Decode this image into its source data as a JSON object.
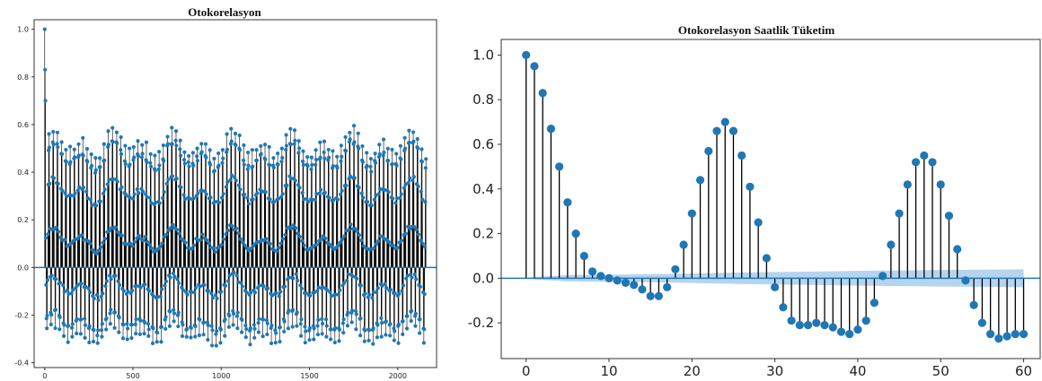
{
  "chart_data": [
    {
      "type": "stem",
      "title": "Otokorelasyon",
      "xlabel": "",
      "ylabel": "",
      "xlim": [
        -60,
        2220
      ],
      "ylim": [
        -0.42,
        1.04
      ],
      "xticks": [
        "0",
        "500",
        "1000",
        "1500",
        "2000"
      ],
      "yticks": [
        "-0.4",
        "-0.2",
        "0.0",
        "0.2",
        "0.4",
        "0.6",
        "0.8",
        "1.0"
      ],
      "xtick_values": [
        0,
        500,
        1000,
        1500,
        2000
      ],
      "ytick_values": [
        -0.4,
        -0.2,
        0.0,
        0.2,
        0.4,
        0.6,
        0.8,
        1.0
      ],
      "max_lag": 2160,
      "period_lags": 24,
      "initial_values": [
        1.0,
        0.95,
        0.83,
        0.68,
        0.7,
        0.62
      ],
      "upper_envelope_base": 0.5,
      "lower_envelope_base": -0.27,
      "marker_color": "#1f77b4",
      "stem_color": "#000000",
      "baseline_color": "#1f77b4",
      "grid": false,
      "legend": "none"
    },
    {
      "type": "stem",
      "title": "Otokorelasyon Saatlik Tüketim",
      "xlabel": "",
      "ylabel": "",
      "xlim": [
        -3,
        62
      ],
      "ylim": [
        -0.36,
        1.07
      ],
      "xticks": [
        "0",
        "10",
        "20",
        "30",
        "40",
        "50",
        "60"
      ],
      "yticks": [
        "-0.2",
        "0.0",
        "0.2",
        "0.4",
        "0.6",
        "0.8",
        "1.0"
      ],
      "xtick_values": [
        0,
        10,
        20,
        30,
        40,
        50,
        60
      ],
      "ytick_values": [
        -0.2,
        0.0,
        0.2,
        0.4,
        0.6,
        0.8,
        1.0
      ],
      "x": [
        0,
        1,
        2,
        3,
        4,
        5,
        6,
        7,
        8,
        9,
        10,
        11,
        12,
        13,
        14,
        15,
        16,
        17,
        18,
        19,
        20,
        21,
        22,
        23,
        24,
        25,
        26,
        27,
        28,
        29,
        30,
        31,
        32,
        33,
        34,
        35,
        36,
        37,
        38,
        39,
        40,
        41,
        42,
        43,
        44,
        45,
        46,
        47,
        48,
        49,
        50,
        51,
        52,
        53,
        54,
        55,
        56,
        57,
        58,
        59,
        60
      ],
      "values": [
        1.0,
        0.95,
        0.83,
        0.67,
        0.5,
        0.34,
        0.2,
        0.1,
        0.03,
        0.01,
        0.0,
        -0.01,
        -0.02,
        -0.03,
        -0.05,
        -0.08,
        -0.08,
        -0.04,
        0.04,
        0.15,
        0.29,
        0.44,
        0.57,
        0.66,
        0.7,
        0.66,
        0.55,
        0.41,
        0.25,
        0.09,
        -0.04,
        -0.13,
        -0.19,
        -0.21,
        -0.21,
        -0.2,
        -0.21,
        -0.22,
        -0.24,
        -0.25,
        -0.23,
        -0.19,
        -0.11,
        0.01,
        0.15,
        0.29,
        0.42,
        0.52,
        0.55,
        0.52,
        0.42,
        0.28,
        0.13,
        -0.01,
        -0.12,
        -0.2,
        -0.25,
        -0.27,
        -0.26,
        -0.25,
        -0.25
      ],
      "confidence_band": {
        "x": [
          0,
          1,
          2,
          3,
          4,
          5,
          10,
          15,
          20,
          25,
          30,
          35,
          40,
          45,
          50,
          55,
          60
        ],
        "upper": [
          0.0,
          0.005,
          0.008,
          0.01,
          0.012,
          0.014,
          0.016,
          0.018,
          0.021,
          0.025,
          0.028,
          0.03,
          0.033,
          0.035,
          0.037,
          0.038,
          0.04
        ],
        "lower": [
          0.0,
          -0.005,
          -0.008,
          -0.01,
          -0.012,
          -0.014,
          -0.016,
          -0.018,
          -0.021,
          -0.025,
          -0.028,
          -0.03,
          -0.033,
          -0.035,
          -0.037,
          -0.038,
          -0.04
        ]
      },
      "marker_color": "#1f77b4",
      "stem_color": "#000000",
      "baseline_color": "#1f77b4",
      "band_color": "#9ec5e8",
      "grid": false,
      "legend": "none"
    }
  ]
}
